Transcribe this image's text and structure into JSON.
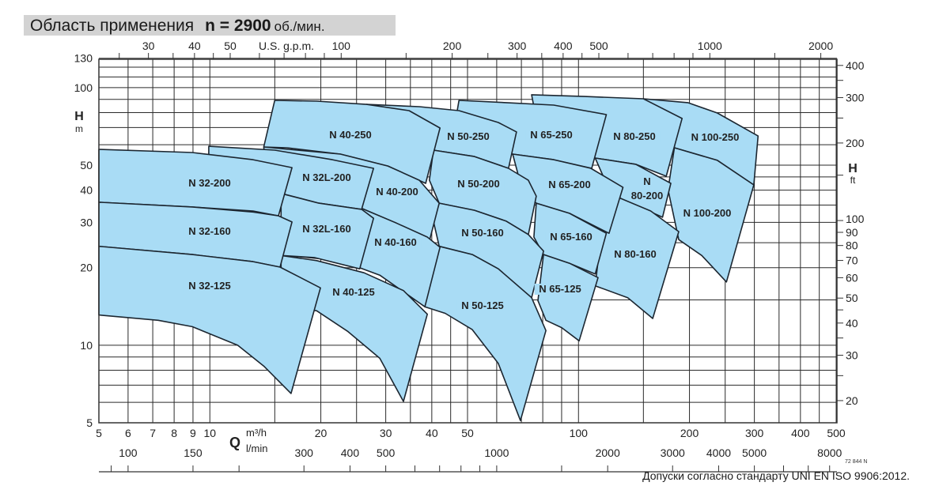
{
  "header": {
    "title": "Область применения",
    "speed": "n = 2900",
    "speed_unit": "об./мин."
  },
  "footer": {
    "note": "Допуски согласно стандарту UNI EN ISO 9906:2012.",
    "drawing_code": "72 844 N"
  },
  "chart_data": {
    "type": "area",
    "title": "",
    "x_scale": "log",
    "y_scale": "log",
    "xlim": [
      5,
      500
    ],
    "ylim": [
      5,
      130
    ],
    "grid": true,
    "colors": {
      "region_fill": "#a9dcf5",
      "region_stroke": "#1c2630",
      "grid": "#2a2a2a"
    },
    "x_axis": {
      "symbol": "Q",
      "unit": "m³/h",
      "ticks": [
        5,
        6,
        7,
        8,
        9,
        10,
        20,
        30,
        40,
        50,
        100,
        200,
        300,
        400,
        500
      ],
      "labels": [
        "5",
        "6",
        "7",
        "8",
        "9",
        "10",
        "20",
        "30",
        "40",
        "50",
        "100",
        "200",
        "300",
        "400",
        "500"
      ],
      "grid": [
        5,
        6,
        7,
        8,
        9,
        10,
        15,
        20,
        25,
        30,
        35,
        40,
        45,
        50,
        60,
        70,
        80,
        90,
        100,
        150,
        200,
        250,
        300,
        350,
        400,
        450,
        500
      ]
    },
    "x_axis_secondary_lmin": {
      "unit": "l/min",
      "factor_per_m3h": 16.667,
      "labels": [
        "100",
        "150",
        "300",
        "400",
        "500",
        "1000",
        "2000",
        "3000",
        "4000",
        "5000",
        "8000"
      ],
      "ticks": [
        90,
        100,
        150,
        200,
        300,
        400,
        500,
        600,
        700,
        800,
        900,
        1000,
        1500,
        2000,
        3000,
        4000,
        5000,
        6000,
        7000,
        8000
      ]
    },
    "x_axis_top_usgpm": {
      "unit": "U.S. g.p.m.",
      "factor_per_m3h": 4.403,
      "labels": [
        "30",
        "40",
        "50",
        "100",
        "200",
        "300",
        "400",
        "500",
        "1000",
        "2000"
      ],
      "ticks": [
        25,
        30,
        35,
        40,
        45,
        50,
        60,
        70,
        80,
        90,
        100,
        150,
        200,
        250,
        300,
        350,
        400,
        450,
        500,
        600,
        700,
        800,
        900,
        1000,
        1500,
        2000
      ]
    },
    "y_axis": {
      "symbol": "H",
      "unit": "m",
      "ticks": [
        5,
        10,
        20,
        30,
        40,
        50,
        100,
        130
      ],
      "labels": [
        "5",
        "10",
        "20",
        "30",
        "40",
        "50",
        "100",
        "130"
      ],
      "grid": [
        5,
        6,
        7,
        8,
        9,
        10,
        15,
        20,
        25,
        30,
        35,
        40,
        45,
        50,
        60,
        70,
        80,
        90,
        100,
        110,
        120,
        130
      ]
    },
    "y_axis_right_ft": {
      "symbol": "H",
      "unit": "ft",
      "factor_per_m": 3.2808,
      "labels": [
        "400",
        "300",
        "200",
        "100",
        "90",
        "80",
        "70",
        "60",
        "50",
        "40",
        "30",
        "20"
      ],
      "ticks": [
        400,
        350,
        300,
        250,
        200,
        150,
        100,
        90,
        80,
        70,
        60,
        50,
        45,
        40,
        35,
        30,
        25,
        20
      ]
    },
    "regions": [
      {
        "name": "N 100-250",
        "points": [
          [
            150,
            90.5
          ],
          [
            198,
            87.4
          ],
          [
            238,
            79.7
          ],
          [
            307,
            64.9
          ],
          [
            299,
            41.9
          ],
          [
            238,
            52.2
          ],
          [
            182,
            58.4
          ],
          [
            180,
            70.7
          ]
        ]
      },
      {
        "name": "N 100-200",
        "points": [
          [
            182,
            58.4
          ],
          [
            238,
            52.2
          ],
          [
            299,
            41.9
          ],
          [
            252,
            17.6
          ],
          [
            216,
            22.3
          ],
          [
            187,
            25.7
          ],
          [
            175,
            40.2
          ]
        ]
      },
      {
        "name": "N 80-250",
        "points": [
          [
            74.6,
            93.8
          ],
          [
            104,
            92.4
          ],
          [
            150,
            90.5
          ],
          [
            191,
            75.9
          ],
          [
            173,
            45.3
          ],
          [
            143,
            50.4
          ],
          [
            111,
            53.3
          ],
          [
            104,
            57.2
          ],
          [
            75.7,
            84.3
          ]
        ]
      },
      {
        "name": "N 80-200",
        "points": [
          [
            111,
            53.3
          ],
          [
            143,
            50.4
          ],
          [
            178,
            42.5
          ],
          [
            169,
            31.4
          ],
          [
            140,
            35.4
          ],
          [
            127,
            37.7
          ],
          [
            121,
            40.2
          ]
        ]
      },
      {
        "name": "N 80-160",
        "points": [
          [
            127,
            37.7
          ],
          [
            157,
            33.2
          ],
          [
            187,
            27.6
          ],
          [
            159,
            12.7
          ],
          [
            136,
            15.3
          ],
          [
            111,
            17.0
          ],
          [
            115,
            26.3
          ]
        ]
      },
      {
        "name": "N 65-250",
        "points": [
          [
            47.4,
            89.2
          ],
          [
            63.7,
            87.4
          ],
          [
            85.7,
            85.5
          ],
          [
            119,
            78.6
          ],
          [
            108.6,
            48.6
          ],
          [
            85.7,
            52.5
          ],
          [
            66.3,
            55.2
          ],
          [
            52.2,
            57.2
          ],
          [
            46.9,
            81.4
          ]
        ]
      },
      {
        "name": "N 65-200",
        "points": [
          [
            66.3,
            55.2
          ],
          [
            85.7,
            52.5
          ],
          [
            108,
            48.6
          ],
          [
            132,
            41.0
          ],
          [
            121,
            27.2
          ],
          [
            94.6,
            32.5
          ],
          [
            76.8,
            35.6
          ],
          [
            70.3,
            40.2
          ]
        ]
      },
      {
        "name": "N 65-160",
        "points": [
          [
            76.8,
            35.6
          ],
          [
            94.6,
            32.5
          ],
          [
            119,
            27.2
          ],
          [
            111,
            18.9
          ],
          [
            94.6,
            20.8
          ],
          [
            80.4,
            22.5
          ],
          [
            75.7,
            26.3
          ]
        ]
      },
      {
        "name": "N 65-125",
        "points": [
          [
            80.4,
            22.5
          ],
          [
            94.6,
            20.8
          ],
          [
            113,
            18.3
          ],
          [
            100.4,
            10.4
          ],
          [
            90,
            11.7
          ],
          [
            81.6,
            12.5
          ],
          [
            77.6,
            14.9
          ]
        ]
      },
      {
        "name": "N 50-250",
        "points": [
          [
            26.6,
            86.1
          ],
          [
            37.0,
            84.3
          ],
          [
            47.4,
            81.4
          ],
          [
            60.6,
            73.2
          ],
          [
            67.9,
            67.3
          ],
          [
            64.6,
            48.6
          ],
          [
            52.2,
            54.0
          ],
          [
            40.4,
            57.2
          ],
          [
            35.2,
            57.2
          ],
          [
            27.5,
            75.9
          ]
        ]
      },
      {
        "name": "N 50-200",
        "points": [
          [
            40.4,
            57.2
          ],
          [
            52.2,
            54.0
          ],
          [
            64.6,
            48.6
          ],
          [
            73.1,
            43.7
          ],
          [
            76.8,
            37.9
          ],
          [
            73.1,
            26.9
          ],
          [
            63.7,
            30.3
          ],
          [
            52.2,
            33.4
          ],
          [
            41.9,
            35.6
          ],
          [
            39.4,
            43.7
          ]
        ]
      },
      {
        "name": "N 50-160",
        "points": [
          [
            41.9,
            35.6
          ],
          [
            52.2,
            33.4
          ],
          [
            63.7,
            30.3
          ],
          [
            73.1,
            26.9
          ],
          [
            80.4,
            23.2
          ],
          [
            74.6,
            15.3
          ],
          [
            60.6,
            19.8
          ],
          [
            51.5,
            22.5
          ],
          [
            41.9,
            24.2
          ],
          [
            40.4,
            30.3
          ]
        ]
      },
      {
        "name": "N 50-125",
        "points": [
          [
            41.9,
            24.2
          ],
          [
            51.5,
            22.5
          ],
          [
            60.6,
            19.8
          ],
          [
            74.6,
            15.3
          ],
          [
            81.6,
            11.4
          ],
          [
            69.6,
            5.1
          ],
          [
            60.6,
            8.5
          ],
          [
            51.5,
            11.5
          ],
          [
            43.5,
            13.3
          ],
          [
            38.3,
            14.1
          ],
          [
            38.9,
            21.3
          ]
        ]
      },
      {
        "name": "N 40-250",
        "points": [
          [
            15.0,
            89.2
          ],
          [
            19.5,
            88.6
          ],
          [
            26.6,
            86.1
          ],
          [
            34.7,
            81.4
          ],
          [
            42.1,
            69.7
          ],
          [
            38.5,
            42.5
          ],
          [
            30.4,
            49.6
          ],
          [
            22.6,
            55.2
          ],
          [
            16.2,
            58.4
          ],
          [
            14.0,
            58.8
          ]
        ]
      },
      {
        "name": "N 40-200",
        "points": [
          [
            14.0,
            58.8
          ],
          [
            22.6,
            55.2
          ],
          [
            30.4,
            49.6
          ],
          [
            37.0,
            43.7
          ],
          [
            41.9,
            35.6
          ],
          [
            39.4,
            25.4
          ],
          [
            31.9,
            29.9
          ],
          [
            25.9,
            33.9
          ],
          [
            16.0,
            37.9
          ],
          [
            14.5,
            37.4
          ]
        ]
      },
      {
        "name": "N 40-160",
        "points": [
          [
            16.0,
            37.9
          ],
          [
            25.9,
            33.9
          ],
          [
            31.9,
            29.9
          ],
          [
            38.9,
            26.3
          ],
          [
            42.1,
            24.0
          ],
          [
            38.3,
            14.1
          ],
          [
            28.9,
            18.7
          ],
          [
            22.6,
            21.3
          ],
          [
            16.2,
            22.3
          ]
        ]
      },
      {
        "name": "N 40-125",
        "points": [
          [
            15.6,
            22.3
          ],
          [
            19.5,
            21.3
          ],
          [
            26.2,
            19.1
          ],
          [
            33.5,
            16.3
          ],
          [
            38.9,
            13.2
          ],
          [
            33.5,
            6.05
          ],
          [
            28.9,
            8.9
          ],
          [
            23.7,
            11.3
          ],
          [
            19.5,
            13.6
          ],
          [
            15.6,
            14.4
          ]
        ]
      },
      {
        "name": "N 32L-200",
        "points": [
          [
            9.93,
            59.2
          ],
          [
            15.0,
            57.2
          ],
          [
            21.5,
            52.5
          ],
          [
            27.8,
            48.6
          ],
          [
            25.8,
            33.7
          ],
          [
            19.75,
            35.6
          ],
          [
            16.0,
            38.5
          ],
          [
            9.93,
            40.2
          ]
        ]
      },
      {
        "name": "N 32L-160",
        "points": [
          [
            15.6,
            38.8
          ],
          [
            19.75,
            35.6
          ],
          [
            25.8,
            33.7
          ],
          [
            27.8,
            31.1
          ],
          [
            25.5,
            19.8
          ],
          [
            19.2,
            21.9
          ],
          [
            15.6,
            22.3
          ]
        ]
      },
      {
        "name": "N 32-200",
        "points": [
          [
            5,
            57.6
          ],
          [
            8.96,
            56.0
          ],
          [
            13.1,
            52.5
          ],
          [
            16.7,
            48.9
          ],
          [
            15.35,
            31.8
          ],
          [
            13.1,
            33.2
          ],
          [
            8.96,
            34.4
          ],
          [
            5,
            35.9
          ]
        ]
      },
      {
        "name": "N 32-160",
        "points": [
          [
            5,
            35.9
          ],
          [
            8.96,
            34.4
          ],
          [
            13.1,
            32.9
          ],
          [
            15.35,
            31.8
          ],
          [
            16.7,
            30.1
          ],
          [
            15.5,
            20.1
          ],
          [
            13.1,
            21.1
          ],
          [
            8.96,
            22.5
          ],
          [
            5,
            24.2
          ]
        ]
      },
      {
        "name": "N 32-125",
        "points": [
          [
            5,
            24.2
          ],
          [
            8.96,
            22.5
          ],
          [
            13.1,
            21.1
          ],
          [
            15.5,
            20.1
          ],
          [
            19.95,
            16.7
          ],
          [
            16.6,
            6.5
          ],
          [
            14.0,
            8.3
          ],
          [
            11.9,
            10.0
          ],
          [
            8.96,
            11.8
          ],
          [
            7.24,
            12.5
          ],
          [
            5,
            13.1
          ]
        ]
      }
    ]
  }
}
